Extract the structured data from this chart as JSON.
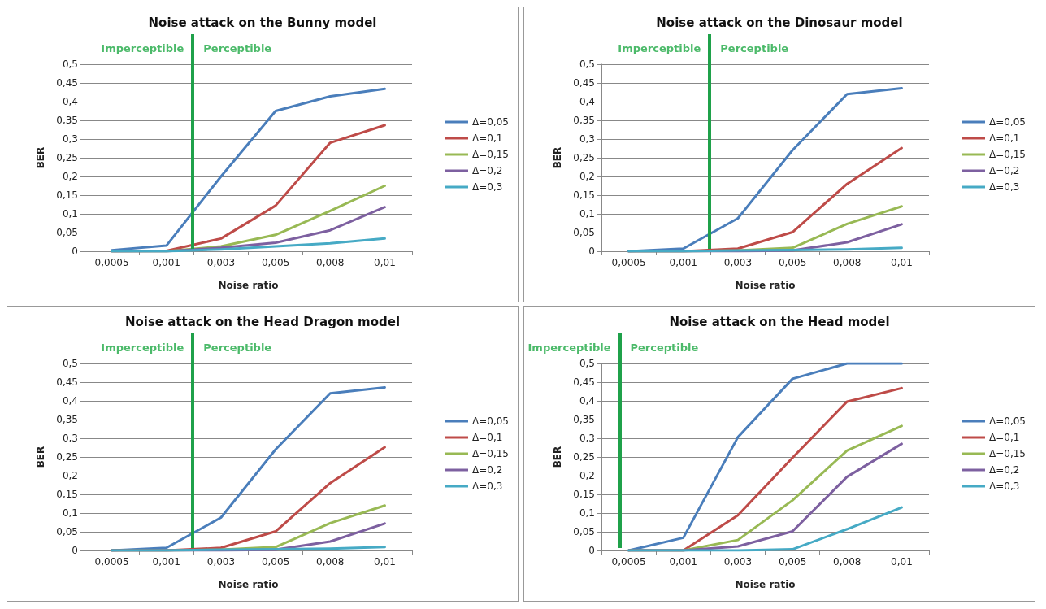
{
  "chart_data": [
    {
      "type": "line",
      "title": "Noise attack on the Bunny model",
      "xlabel": "Noise ratio",
      "ylabel": "BER",
      "categories": [
        "0,0005",
        "0,001",
        "0,003",
        "0,005",
        "0,008",
        "0,01"
      ],
      "ylim": [
        0,
        0.5
      ],
      "yticks": [
        {
          "value": 0,
          "label": "0"
        },
        {
          "value": 0.05,
          "label": "0,05"
        },
        {
          "value": 0.1,
          "label": "0,1"
        },
        {
          "value": 0.15,
          "label": "0,15"
        },
        {
          "value": 0.2,
          "label": "0,2"
        },
        {
          "value": 0.25,
          "label": "0,25"
        },
        {
          "value": 0.3,
          "label": "0,3"
        },
        {
          "value": 0.35,
          "label": "0,35"
        },
        {
          "value": 0.4,
          "label": "0,4"
        },
        {
          "value": 0.45,
          "label": "0,45"
        },
        {
          "value": 0.5,
          "label": "0,5"
        }
      ],
      "grid": "y",
      "legend": "right",
      "marker": "none",
      "line_style": "solid",
      "annotations": [
        "Imperceptible",
        "Perceptible"
      ],
      "series": [
        {
          "name": "Δ=0,05",
          "color": "#4a7ebb",
          "values": [
            0.003,
            0.015,
            0.2,
            0.375,
            0.414,
            0.434
          ]
        },
        {
          "name": "Δ=0,1",
          "color": "#be4b48",
          "values": [
            0,
            0.001,
            0.034,
            0.122,
            0.29,
            0.337
          ]
        },
        {
          "name": "Δ=0,15",
          "color": "#98b954",
          "values": [
            0,
            0,
            0.013,
            0.044,
            0.108,
            0.175
          ]
        },
        {
          "name": "Δ=0,2",
          "color": "#7d60a0",
          "values": [
            0,
            0,
            0.009,
            0.023,
            0.056,
            0.118
          ]
        },
        {
          "name": "Δ=0,3",
          "color": "#46aac5",
          "values": [
            0,
            0,
            0.005,
            0.013,
            0.021,
            0.034
          ]
        }
      ]
    },
    {
      "type": "line",
      "title": "Noise attack on the Dinosaur model",
      "xlabel": "Noise ratio",
      "ylabel": "BER",
      "categories": [
        "0,0005",
        "0,001",
        "0,003",
        "0,005",
        "0,008",
        "0,01"
      ],
      "ylim": [
        0,
        0.5
      ],
      "yticks": [
        {
          "value": 0,
          "label": "0"
        },
        {
          "value": 0.05,
          "label": "0,05"
        },
        {
          "value": 0.1,
          "label": "0,1"
        },
        {
          "value": 0.15,
          "label": "0,15"
        },
        {
          "value": 0.2,
          "label": "0,2"
        },
        {
          "value": 0.25,
          "label": "0,25"
        },
        {
          "value": 0.3,
          "label": "0,3"
        },
        {
          "value": 0.35,
          "label": "0,35"
        },
        {
          "value": 0.4,
          "label": "0,4"
        },
        {
          "value": 0.45,
          "label": "0,45"
        },
        {
          "value": 0.5,
          "label": "0,5"
        }
      ],
      "grid": "y",
      "legend": "right",
      "marker": "none",
      "line_style": "solid",
      "annotations": [
        "Imperceptible",
        "Perceptible"
      ],
      "series": [
        {
          "name": "Δ=0,05",
          "color": "#4a7ebb",
          "values": [
            0,
            0.007,
            0.088,
            0.27,
            0.42,
            0.436
          ]
        },
        {
          "name": "Δ=0,1",
          "color": "#be4b48",
          "values": [
            0,
            0,
            0.007,
            0.051,
            0.18,
            0.276
          ]
        },
        {
          "name": "Δ=0,15",
          "color": "#98b954",
          "values": [
            0,
            0,
            0.002,
            0.009,
            0.073,
            0.12
          ]
        },
        {
          "name": "Δ=0,2",
          "color": "#7d60a0",
          "values": [
            0,
            0,
            0,
            0.002,
            0.024,
            0.072
          ]
        },
        {
          "name": "Δ=0,3",
          "color": "#46aac5",
          "values": [
            0,
            0,
            0.002,
            0.003,
            0.005,
            0.009
          ]
        }
      ]
    },
    {
      "type": "line",
      "title": "Noise attack on the Head Dragon model",
      "xlabel": "Noise ratio",
      "ylabel": "BER",
      "categories": [
        "0,0005",
        "0,001",
        "0,003",
        "0,005",
        "0,008",
        "0,01"
      ],
      "ylim": [
        0,
        0.5
      ],
      "yticks": [
        {
          "value": 0,
          "label": "0"
        },
        {
          "value": 0.05,
          "label": "0,05"
        },
        {
          "value": 0.1,
          "label": "0,1"
        },
        {
          "value": 0.15,
          "label": "0,15"
        },
        {
          "value": 0.2,
          "label": "0,2"
        },
        {
          "value": 0.25,
          "label": "0,25"
        },
        {
          "value": 0.3,
          "label": "0,3"
        },
        {
          "value": 0.35,
          "label": "0,35"
        },
        {
          "value": 0.4,
          "label": "0,4"
        },
        {
          "value": 0.45,
          "label": "0,45"
        },
        {
          "value": 0.5,
          "label": "0,5"
        }
      ],
      "grid": "y",
      "legend": "right",
      "marker": "none",
      "line_style": "solid",
      "annotations": [
        "Imperceptible",
        "Perceptible"
      ],
      "series": [
        {
          "name": "Δ=0,05",
          "color": "#4a7ebb",
          "values": [
            0,
            0.007,
            0.088,
            0.27,
            0.42,
            0.436
          ]
        },
        {
          "name": "Δ=0,1",
          "color": "#be4b48",
          "values": [
            0,
            0,
            0.007,
            0.051,
            0.18,
            0.276
          ]
        },
        {
          "name": "Δ=0,15",
          "color": "#98b954",
          "values": [
            0,
            0,
            0.002,
            0.009,
            0.073,
            0.12
          ]
        },
        {
          "name": "Δ=0,2",
          "color": "#7d60a0",
          "values": [
            0,
            0,
            0,
            0.002,
            0.024,
            0.072
          ]
        },
        {
          "name": "Δ=0,3",
          "color": "#46aac5",
          "values": [
            0,
            0,
            0.002,
            0.003,
            0.005,
            0.009
          ]
        }
      ]
    },
    {
      "type": "line",
      "title": "Noise attack on the Head model",
      "xlabel": "Noise ratio",
      "ylabel": "BER",
      "categories": [
        "0,0005",
        "0,001",
        "0,003",
        "0,005",
        "0,008",
        "0,01"
      ],
      "ylim": [
        0,
        0.5
      ],
      "yticks": [
        {
          "value": 0,
          "label": "0"
        },
        {
          "value": 0.05,
          "label": "0,05"
        },
        {
          "value": 0.1,
          "label": "0,1"
        },
        {
          "value": 0.15,
          "label": "0,15"
        },
        {
          "value": 0.2,
          "label": "0,2"
        },
        {
          "value": 0.25,
          "label": "0,25"
        },
        {
          "value": 0.3,
          "label": "0,3"
        },
        {
          "value": 0.35,
          "label": "0,35"
        },
        {
          "value": 0.4,
          "label": "0,4"
        },
        {
          "value": 0.45,
          "label": "0,45"
        },
        {
          "value": 0.5,
          "label": "0,5"
        }
      ],
      "grid": "y",
      "legend": "right",
      "marker": "none",
      "line_style": "solid",
      "annotations": [
        "Imperceptible",
        "Perceptible"
      ],
      "series": [
        {
          "name": "Δ=0,05",
          "color": "#4a7ebb",
          "values": [
            0,
            0.034,
            0.303,
            0.459,
            0.5,
            0.5
          ]
        },
        {
          "name": "Δ=0,1",
          "color": "#be4b48",
          "values": [
            0,
            0,
            0.094,
            0.248,
            0.398,
            0.434
          ]
        },
        {
          "name": "Δ=0,15",
          "color": "#98b954",
          "values": [
            0,
            0,
            0.028,
            0.134,
            0.267,
            0.333
          ]
        },
        {
          "name": "Δ=0,2",
          "color": "#7d60a0",
          "values": [
            0,
            0,
            0.011,
            0.051,
            0.197,
            0.285
          ]
        },
        {
          "name": "Δ=0,3",
          "color": "#46aac5",
          "values": [
            0,
            0,
            0,
            0.003,
            0.057,
            0.115
          ]
        }
      ]
    }
  ]
}
